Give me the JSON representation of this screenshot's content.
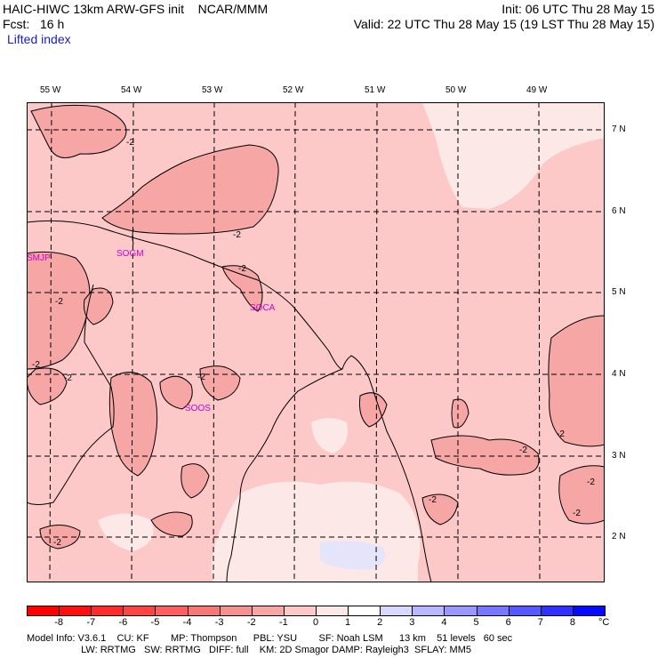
{
  "header": {
    "line1_left": "HAIC-HIWC 13km ARW-GFS init    NCAR/MMM",
    "line1_right": "Init: 06 UTC Thu 28 May 15",
    "line2_left": "Fcst:   16 h",
    "line2_right": "Valid: 22 UTC Thu 28 May 15 (19 LST Thu 28 May 15)",
    "field": "Lifted index"
  },
  "map": {
    "lon_labels": [
      "55 W",
      "54 W",
      "53 W",
      "52 W",
      "51 W",
      "50 W",
      "49 W"
    ],
    "lat_labels": [
      "7 N",
      "6 N",
      "5 N",
      "4 N",
      "3 N",
      "2 N"
    ],
    "stations": [
      "SMJP",
      "SOGM",
      "SOCA",
      "SOOS"
    ],
    "contour_label": "-2",
    "colors": {
      "background": "#fcc8c8",
      "darker": "#f7a6a6",
      "lighter": "#fde8e8"
    }
  },
  "colorbar": {
    "labels": [
      "-8",
      "-7",
      "-6",
      "-5",
      "-4",
      "-3",
      "-2",
      "-1",
      "0",
      "1",
      "2",
      "3",
      "4",
      "5",
      "6",
      "7",
      "8"
    ],
    "unit": "°C",
    "colors": [
      "#ff1010",
      "#ff2a2a",
      "#ff4444",
      "#ff5e5e",
      "#f57878",
      "#f59090",
      "#f7a6a6",
      "#fcc8c8",
      "#fde8e8",
      "#ffffff",
      "#d8d8ff",
      "#b8b8ff",
      "#9898ff",
      "#7878ff",
      "#5858ff",
      "#3030ff",
      "#0808ff"
    ]
  },
  "footer": {
    "line1": "Model Info: V3.6.1    CU: KF        MP: Thompson      PBL: YSU        SF: Noah LSM      13 km    51 levels   60 sec",
    "line2": "                    LW: RRTMG   SW: RRTMG   DIFF: full    KM: 2D Smagor DAMP: Rayleigh3  SFLAY: MM5"
  }
}
